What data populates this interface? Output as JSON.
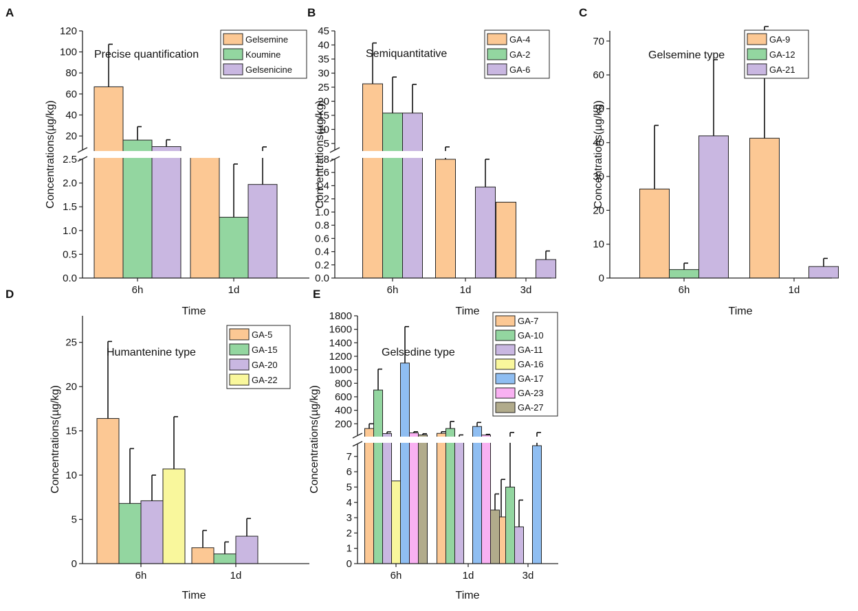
{
  "colors": {
    "orange": "#fcc894",
    "green": "#93d6a0",
    "purple": "#c9b7e1",
    "yellow": "#f9f79c",
    "blue": "#8fbef2",
    "pink": "#f9b1f2",
    "olive": "#b1ab8b"
  },
  "chart_data": [
    {
      "id": "A",
      "type": "bar",
      "panel_label": "A",
      "annotation": "Precise quantification",
      "xlabel": "Time",
      "ylabel": "Concentrations(µg/kg)",
      "categories": [
        "6h",
        "1d"
      ],
      "broken_axis": true,
      "ylim_lower": [
        0,
        2.5
      ],
      "ylim_upper": [
        7,
        120
      ],
      "yticks_lower": [
        "0.0",
        "0.5",
        "1.0",
        "1.5",
        "2.0",
        "2.5"
      ],
      "yticks_upper": [
        "20",
        "40",
        "60",
        "80",
        "100",
        "120"
      ],
      "series": [
        {
          "name": "Gelsemine",
          "color": "orange",
          "values": [
            66.8,
            2.55
          ],
          "errors": [
            40.5,
            2.3
          ]
        },
        {
          "name": "Koumine",
          "color": "green",
          "values": [
            16.1,
            1.28
          ],
          "errors": [
            12.8,
            1.12
          ]
        },
        {
          "name": "Gelsenicine",
          "color": "purple",
          "values": [
            9.9,
            1.97
          ],
          "errors": [
            6.5,
            1.8
          ]
        }
      ]
    },
    {
      "id": "B",
      "type": "bar",
      "panel_label": "B",
      "annotation": "Semiquantitative",
      "xlabel": "Time",
      "ylabel": "Concentrations(µg/kg)",
      "categories": [
        "6h",
        "1d",
        "3d"
      ],
      "broken_axis": true,
      "ylim_lower": [
        0,
        1.8
      ],
      "ylim_upper": [
        2.8,
        45
      ],
      "yticks_lower": [
        "0.0",
        "0.2",
        "0.4",
        "0.6",
        "0.8",
        "1.0",
        "1.2",
        "1.4",
        "1.6",
        "1.8"
      ],
      "yticks_upper": [
        "5",
        "10",
        "15",
        "20",
        "25",
        "30",
        "35",
        "40",
        "45"
      ],
      "series": [
        {
          "name": "GA-4",
          "color": "orange",
          "values": [
            26.2,
            1.8,
            1.15
          ],
          "errors": [
            14.5,
            1.5,
            0
          ]
        },
        {
          "name": "GA-2",
          "color": "green",
          "values": [
            15.8,
            0,
            0
          ],
          "errors": [
            12.8,
            0,
            0
          ]
        },
        {
          "name": "GA-6",
          "color": "purple",
          "values": [
            15.8,
            1.38,
            0.28
          ],
          "errors": [
            10.2,
            0.42,
            0.13
          ]
        }
      ]
    },
    {
      "id": "C",
      "type": "bar",
      "panel_label": "C",
      "annotation": "Gelsemine type",
      "xlabel": "Time",
      "ylabel": "Concentrations(µg/kg)",
      "categories": [
        "6h",
        "1d"
      ],
      "broken_axis": false,
      "ylim": [
        0,
        73
      ],
      "yticks": [
        "0",
        "10",
        "20",
        "30",
        "40",
        "50",
        "60",
        "70"
      ],
      "series": [
        {
          "name": "GA-9",
          "color": "orange",
          "values": [
            26.3,
            41.3
          ],
          "errors": [
            18.8,
            33.0
          ]
        },
        {
          "name": "GA-12",
          "color": "green",
          "values": [
            2.5,
            0
          ],
          "errors": [
            1.9,
            0
          ]
        },
        {
          "name": "GA-21",
          "color": "purple",
          "values": [
            42.0,
            3.4
          ],
          "errors": [
            22.5,
            2.4
          ]
        }
      ]
    },
    {
      "id": "D",
      "type": "bar",
      "panel_label": "D",
      "annotation": "Humantenine type",
      "xlabel": "Time",
      "ylabel": "Concentrations(µg/kg)",
      "categories": [
        "6h",
        "1d"
      ],
      "broken_axis": false,
      "ylim": [
        0,
        28
      ],
      "yticks": [
        "0",
        "5",
        "10",
        "15",
        "20",
        "25"
      ],
      "series": [
        {
          "name": "GA-5",
          "color": "orange",
          "values": [
            16.4,
            1.8
          ],
          "errors": [
            8.7,
            1.95
          ]
        },
        {
          "name": "GA-15",
          "color": "green",
          "values": [
            6.8,
            1.1
          ],
          "errors": [
            6.2,
            1.35
          ]
        },
        {
          "name": "GA-20",
          "color": "purple",
          "values": [
            7.1,
            3.1
          ],
          "errors": [
            2.9,
            2.0
          ]
        },
        {
          "name": "GA-22",
          "color": "yellow",
          "values": [
            10.7,
            0
          ],
          "errors": [
            5.9,
            0
          ]
        }
      ]
    },
    {
      "id": "E",
      "type": "bar",
      "panel_label": "E",
      "annotation": "Gelsedine type",
      "xlabel": "Time",
      "ylabel": "Concentrations(µg/kg)",
      "categories": [
        "6h",
        "1d",
        "3d"
      ],
      "broken_axis": true,
      "ylim_lower": [
        0,
        7.8
      ],
      "ylim_upper": [
        30,
        1800
      ],
      "yticks_lower": [
        "0",
        "1",
        "2",
        "3",
        "4",
        "5",
        "6",
        "7"
      ],
      "yticks_upper": [
        "200",
        "400",
        "600",
        "800",
        "1000",
        "1200",
        "1400",
        "1600",
        "1800"
      ],
      "series": [
        {
          "name": "GA-7",
          "color": "orange",
          "values": [
            130,
            58,
            3.05
          ],
          "errors": [
            70,
            25,
            2.45
          ]
        },
        {
          "name": "GA-10",
          "color": "green",
          "values": [
            700,
            130,
            5.0
          ],
          "errors": [
            310,
            105,
            5.0
          ]
        },
        {
          "name": "GA-11",
          "color": "purple",
          "values": [
            55,
            25,
            2.4
          ],
          "errors": [
            25,
            10,
            1.75
          ]
        },
        {
          "name": "GA-16",
          "color": "yellow",
          "values": [
            5.4,
            0,
            0
          ],
          "errors": [
            0,
            0,
            0
          ]
        },
        {
          "name": "GA-17",
          "color": "blue",
          "values": [
            1100,
            160,
            7.7
          ],
          "errors": [
            540,
            60,
            50
          ]
        },
        {
          "name": "GA-23",
          "color": "pink",
          "values": [
            65,
            33,
            0
          ],
          "errors": [
            18,
            10,
            0
          ]
        },
        {
          "name": "GA-27",
          "color": "olive",
          "values": [
            35,
            3.5,
            0
          ],
          "errors": [
            18,
            1.05,
            0
          ]
        }
      ]
    }
  ]
}
